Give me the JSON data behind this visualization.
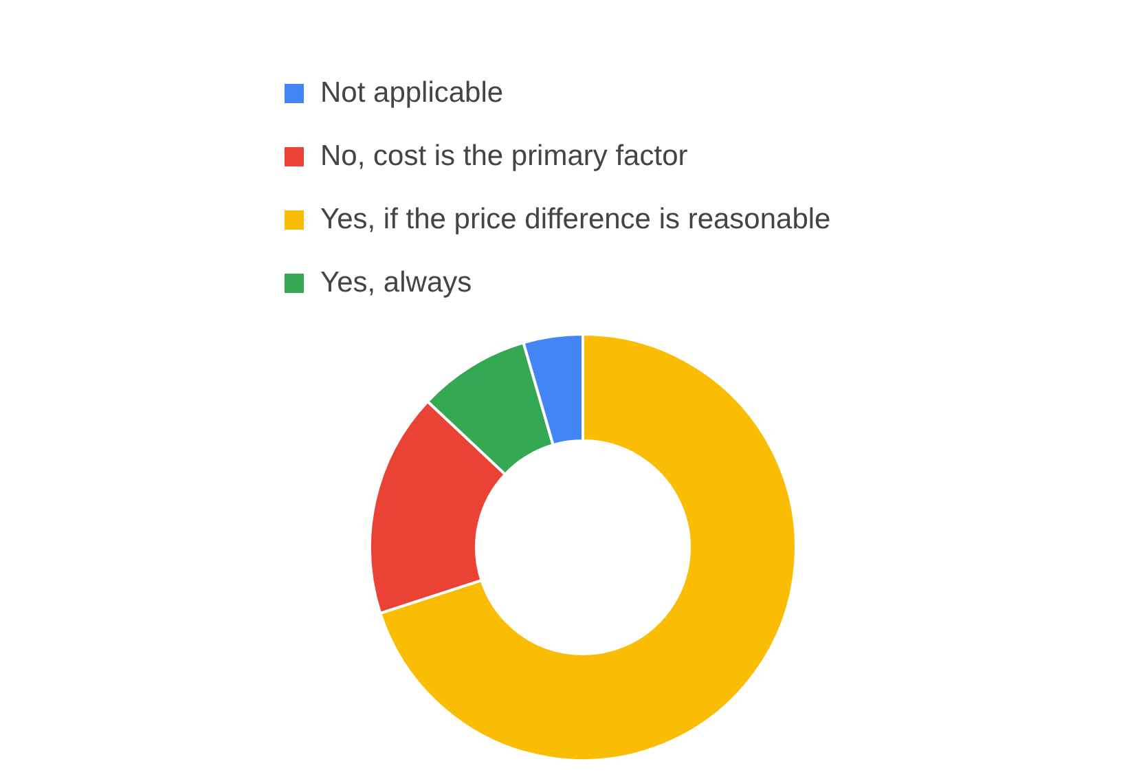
{
  "chart_data": {
    "type": "donut",
    "categories": [
      "Yes, if the price difference is reasonable",
      "No, cost is the primary factor",
      "Yes, always",
      "Not applicable"
    ],
    "values": [
      70,
      17,
      8.5,
      4.5
    ],
    "colors": [
      "#fbbc04",
      "#ea4335",
      "#34a853",
      "#4285f4"
    ],
    "legend": "top"
  }
}
